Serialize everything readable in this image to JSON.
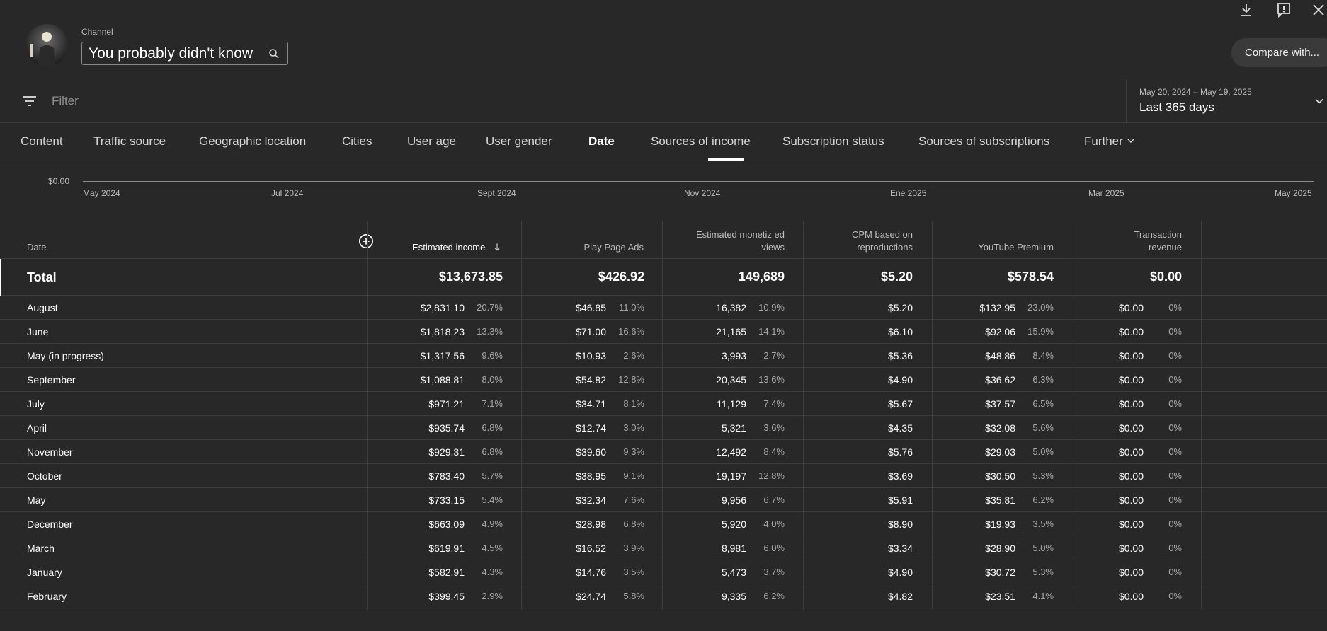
{
  "header": {
    "channel_label": "Channel",
    "channel_name": "You probably didn't know",
    "compare_button": "Compare with..."
  },
  "filter": {
    "placeholder": "Filter"
  },
  "date_range": {
    "range": "May 20, 2024 – May 19, 2025",
    "label": "Last 365 days"
  },
  "tabs": [
    {
      "label": "Content"
    },
    {
      "label": "Traffic source"
    },
    {
      "label": "Geographic location"
    },
    {
      "label": "Cities"
    },
    {
      "label": "User age"
    },
    {
      "label": "User gender"
    },
    {
      "label": "Date",
      "active": true
    },
    {
      "label": "Sources of income"
    },
    {
      "label": "Subscription status"
    },
    {
      "label": "Sources of subscriptions"
    },
    {
      "label": "Further"
    }
  ],
  "chart_data": {
    "type": "line",
    "y_tick": "$0.00",
    "x_ticks": [
      "May 2024",
      "Jul 2024",
      "Sept 2024",
      "Nov 2024",
      "Ene 2025",
      "Mar 2025",
      "May 2025"
    ]
  },
  "table": {
    "headers": {
      "date": "Date",
      "estimated_income": "Estimated income",
      "play_page_ads": "Play Page Ads",
      "monetized_views_1": "Estimated monetiz ed",
      "monetized_views_2": "views",
      "cpm_1": "CPM based on",
      "cpm_2": "reproductions",
      "youtube_premium": "YouTube Premium",
      "transaction_1": "Transaction",
      "transaction_2": "revenue"
    },
    "total": {
      "label": "Total",
      "income": "$13,673.85",
      "ads": "$426.92",
      "views": "149,689",
      "cpm": "$5.20",
      "premium": "$578.54",
      "transaction": "$0.00"
    },
    "rows": [
      {
        "label": "August",
        "income": "$2,831.10",
        "income_pct": "20.7%",
        "ads": "$46.85",
        "ads_pct": "11.0%",
        "views": "16,382",
        "views_pct": "10.9%",
        "cpm": "$5.20",
        "premium": "$132.95",
        "premium_pct": "23.0%",
        "transaction": "$0.00",
        "transaction_pct": "0%"
      },
      {
        "label": "June",
        "income": "$1,818.23",
        "income_pct": "13.3%",
        "ads": "$71.00",
        "ads_pct": "16.6%",
        "views": "21,165",
        "views_pct": "14.1%",
        "cpm": "$6.10",
        "premium": "$92.06",
        "premium_pct": "15.9%",
        "transaction": "$0.00",
        "transaction_pct": "0%"
      },
      {
        "label": "May (in progress)",
        "income": "$1,317.56",
        "income_pct": "9.6%",
        "ads": "$10.93",
        "ads_pct": "2.6%",
        "views": "3,993",
        "views_pct": "2.7%",
        "cpm": "$5.36",
        "premium": "$48.86",
        "premium_pct": "8.4%",
        "transaction": "$0.00",
        "transaction_pct": "0%"
      },
      {
        "label": "September",
        "income": "$1,088.81",
        "income_pct": "8.0%",
        "ads": "$54.82",
        "ads_pct": "12.8%",
        "views": "20,345",
        "views_pct": "13.6%",
        "cpm": "$4.90",
        "premium": "$36.62",
        "premium_pct": "6.3%",
        "transaction": "$0.00",
        "transaction_pct": "0%"
      },
      {
        "label": "July",
        "income": "$971.21",
        "income_pct": "7.1%",
        "ads": "$34.71",
        "ads_pct": "8.1%",
        "views": "11,129",
        "views_pct": "7.4%",
        "cpm": "$5.67",
        "premium": "$37.57",
        "premium_pct": "6.5%",
        "transaction": "$0.00",
        "transaction_pct": "0%"
      },
      {
        "label": "April",
        "income": "$935.74",
        "income_pct": "6.8%",
        "ads": "$12.74",
        "ads_pct": "3.0%",
        "views": "5,321",
        "views_pct": "3.6%",
        "cpm": "$4.35",
        "premium": "$32.08",
        "premium_pct": "5.6%",
        "transaction": "$0.00",
        "transaction_pct": "0%"
      },
      {
        "label": "November",
        "income": "$929.31",
        "income_pct": "6.8%",
        "ads": "$39.60",
        "ads_pct": "9.3%",
        "views": "12,492",
        "views_pct": "8.4%",
        "cpm": "$5.76",
        "premium": "$29.03",
        "premium_pct": "5.0%",
        "transaction": "$0.00",
        "transaction_pct": "0%"
      },
      {
        "label": "October",
        "income": "$783.40",
        "income_pct": "5.7%",
        "ads": "$38.95",
        "ads_pct": "9.1%",
        "views": "19,197",
        "views_pct": "12.8%",
        "cpm": "$3.69",
        "premium": "$30.50",
        "premium_pct": "5.3%",
        "transaction": "$0.00",
        "transaction_pct": "0%"
      },
      {
        "label": "May",
        "income": "$733.15",
        "income_pct": "5.4%",
        "ads": "$32.34",
        "ads_pct": "7.6%",
        "views": "9,956",
        "views_pct": "6.7%",
        "cpm": "$5.91",
        "premium": "$35.81",
        "premium_pct": "6.2%",
        "transaction": "$0.00",
        "transaction_pct": "0%"
      },
      {
        "label": "December",
        "income": "$663.09",
        "income_pct": "4.9%",
        "ads": "$28.98",
        "ads_pct": "6.8%",
        "views": "5,920",
        "views_pct": "4.0%",
        "cpm": "$8.90",
        "premium": "$19.93",
        "premium_pct": "3.5%",
        "transaction": "$0.00",
        "transaction_pct": "0%"
      },
      {
        "label": "March",
        "income": "$619.91",
        "income_pct": "4.5%",
        "ads": "$16.52",
        "ads_pct": "3.9%",
        "views": "8,981",
        "views_pct": "6.0%",
        "cpm": "$3.34",
        "premium": "$28.90",
        "premium_pct": "5.0%",
        "transaction": "$0.00",
        "transaction_pct": "0%"
      },
      {
        "label": "January",
        "income": "$582.91",
        "income_pct": "4.3%",
        "ads": "$14.76",
        "ads_pct": "3.5%",
        "views": "5,473",
        "views_pct": "3.7%",
        "cpm": "$4.90",
        "premium": "$30.72",
        "premium_pct": "5.3%",
        "transaction": "$0.00",
        "transaction_pct": "0%"
      },
      {
        "label": "February",
        "income": "$399.45",
        "income_pct": "2.9%",
        "ads": "$24.74",
        "ads_pct": "5.8%",
        "views": "9,335",
        "views_pct": "6.2%",
        "cpm": "$4.82",
        "premium": "$23.51",
        "premium_pct": "4.1%",
        "transaction": "$0.00",
        "transaction_pct": "0%"
      }
    ]
  }
}
